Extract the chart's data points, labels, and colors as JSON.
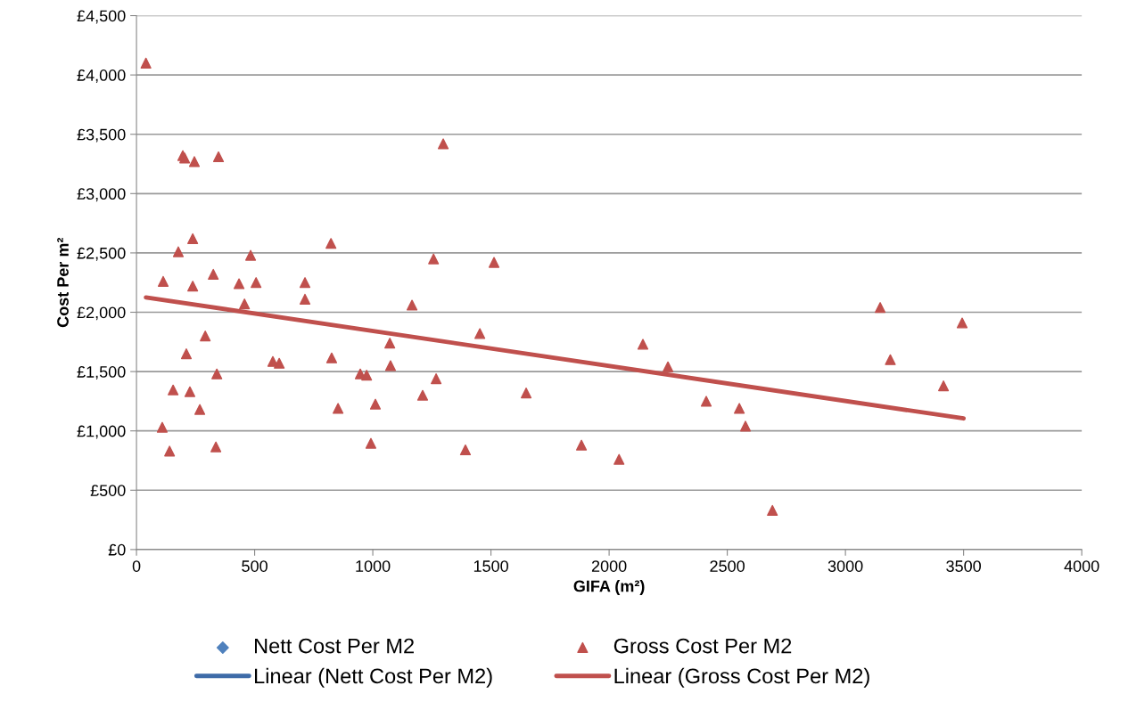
{
  "chart_data": {
    "type": "scatter",
    "xlabel": "GIFA (m²)",
    "ylabel": "Cost Per m²",
    "xlim": [
      0,
      4000
    ],
    "xticks": [
      0,
      500,
      1000,
      1500,
      2000,
      2500,
      3000,
      3500,
      4000
    ],
    "ylim": [
      0,
      4500
    ],
    "yticks": [
      {
        "value": 0,
        "label": "£0"
      },
      {
        "value": 500,
        "label": "£500"
      },
      {
        "value": 1000,
        "label": "£1,000"
      },
      {
        "value": 1500,
        "label": "£1,500"
      },
      {
        "value": 2000,
        "label": "£2,000"
      },
      {
        "value": 2500,
        "label": "£2,500"
      },
      {
        "value": 3000,
        "label": "£3,000"
      },
      {
        "value": 3500,
        "label": "£3,500"
      },
      {
        "value": 4000,
        "label": "£4,000"
      },
      {
        "value": 4500,
        "label": "£4,500"
      }
    ],
    "grid": "y",
    "legend": "bottom",
    "series": [
      {
        "name": "Nett Cost Per M2",
        "marker": "diamond",
        "color": "#4f81bd"
      },
      {
        "name": "Gross Cost Per M2",
        "marker": "triangle",
        "color": "#c0504d",
        "x": [
          40,
          196,
          204,
          245,
          347,
          1298,
          238,
          823,
          177,
          483,
          113,
          238,
          325,
          434,
          506,
          713,
          713,
          457,
          1166,
          1257,
          1513,
          291,
          211,
          1453,
          1072,
          2143,
          577,
          604,
          826,
          1075,
          2249,
          3190,
          3494,
          3147,
          3415,
          155,
          226,
          340,
          947,
          974,
          1268,
          268,
          1211,
          1649,
          853,
          1011,
          2411,
          2551,
          2577,
          109,
          140,
          336,
          992,
          1392,
          1883,
          2042,
          2691
        ],
        "values": [
          4100,
          3320,
          3300,
          3270,
          3310,
          3420,
          2620,
          2580,
          2510,
          2480,
          2260,
          2220,
          2320,
          2240,
          2250,
          2250,
          2110,
          2070,
          2060,
          2450,
          2420,
          1800,
          1650,
          1820,
          1740,
          1730,
          1585,
          1570,
          1615,
          1550,
          1540,
          1600,
          1910,
          2040,
          1380,
          1345,
          1330,
          1480,
          1480,
          1470,
          1440,
          1180,
          1300,
          1320,
          1190,
          1225,
          1250,
          1190,
          1040,
          1030,
          830,
          865,
          895,
          840,
          880,
          760,
          330
        ]
      },
      {
        "name": "Linear (Nett Cost Per M2)",
        "type": "line",
        "marker": "none",
        "color": "#3e6ba8"
      },
      {
        "name": "Linear (Gross Cost Per M2)",
        "type": "line",
        "marker": "none",
        "color": "#c0504d",
        "x": [
          40,
          3500
        ],
        "values": [
          2125,
          1105
        ]
      }
    ]
  }
}
